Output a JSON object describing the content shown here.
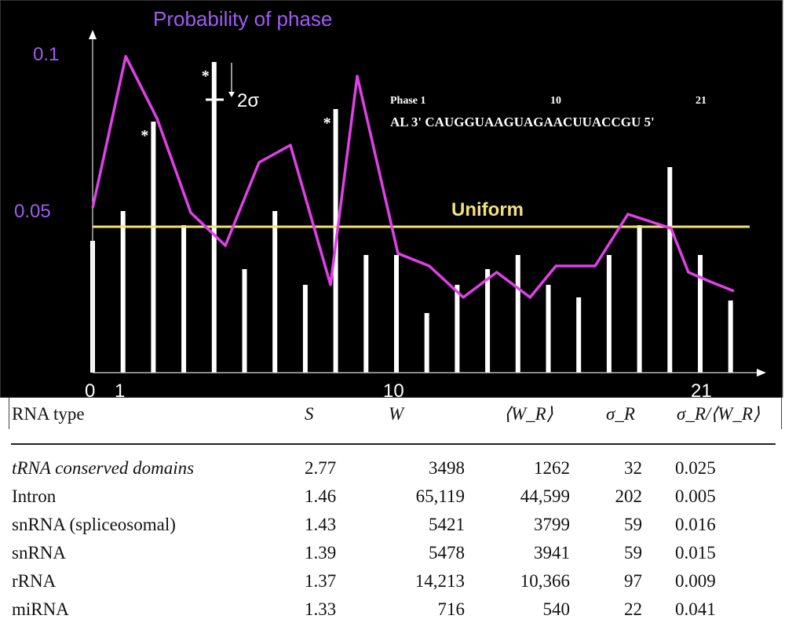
{
  "chart_data": {
    "type": "bar+line",
    "title": "Probability of phase",
    "x_ticks": [
      "0",
      "1",
      "10",
      "21"
    ],
    "y_ticks": [
      "0.05",
      "0.1"
    ],
    "ylim": [
      0,
      0.105
    ],
    "xlim": [
      0,
      22
    ],
    "bars": {
      "x": [
        0,
        1,
        2,
        3,
        4,
        5,
        6,
        7,
        8,
        9,
        10,
        11,
        12,
        13,
        14,
        15,
        16,
        17,
        18,
        19,
        20,
        21
      ],
      "values": [
        0.042,
        0.0515,
        0.08,
        0.047,
        0.099,
        0.033,
        0.0515,
        0.028,
        0.084,
        0.0375,
        0.0375,
        0.019,
        0.028,
        0.033,
        0.0375,
        0.028,
        0.024,
        0.0375,
        0.047,
        0.0655,
        0.0375,
        0.023
      ],
      "starred": [
        2,
        4,
        8
      ]
    },
    "line": {
      "x": [
        0,
        1.09,
        2.12,
        3.23,
        4.37,
        5.48,
        6.51,
        7.83,
        8.71,
        10.05,
        11.08,
        12.2,
        13.3,
        14.4,
        15.25,
        16.54,
        17.62,
        19.04,
        19.61,
        20.33,
        21.11
      ],
      "values": [
        0.0525,
        0.1008,
        0.081,
        0.051,
        0.0405,
        0.067,
        0.0725,
        0.028,
        0.0945,
        0.038,
        0.034,
        0.024,
        0.032,
        0.024,
        0.034,
        0.034,
        0.0505,
        0.046,
        0.032,
        0.029,
        0.026
      ]
    },
    "uniform": {
      "label": "Uniform",
      "value": 0.0465
    },
    "annotations": {
      "sigma": "2σ",
      "star": "*",
      "phase_label": "Phase  1",
      "phase_10": "10",
      "phase_21": "21",
      "sequence": "AL 3' CAUGGUAAGUAGAACUUACCGU 5'"
    },
    "colors": {
      "background": "#000000",
      "bars": "#ffffff",
      "line": "#e040e8",
      "uniform": "#f2e27a",
      "title": "#a05cf0"
    }
  },
  "table": {
    "headers": [
      "RNA type",
      "S",
      "W",
      "⟨W_R⟩",
      "σ_R",
      "σ_R/⟨W_R⟩"
    ],
    "rows": [
      [
        "tRNA conserved domains",
        "2.77",
        "3498",
        "1262",
        "32",
        "0.025"
      ],
      [
        "Intron",
        "1.46",
        "65,119",
        "44,599",
        "202",
        "0.005"
      ],
      [
        "snRNA (spliceosomal)",
        "1.43",
        "5421",
        "3799",
        "59",
        "0.016"
      ],
      [
        "snRNA",
        "1.39",
        "5478",
        "3941",
        "59",
        "0.015"
      ],
      [
        "rRNA",
        "1.37",
        "14,213",
        "10,366",
        "97",
        "0.009"
      ],
      [
        "miRNA",
        "1.33",
        "716",
        "540",
        "22",
        "0.041"
      ]
    ]
  }
}
